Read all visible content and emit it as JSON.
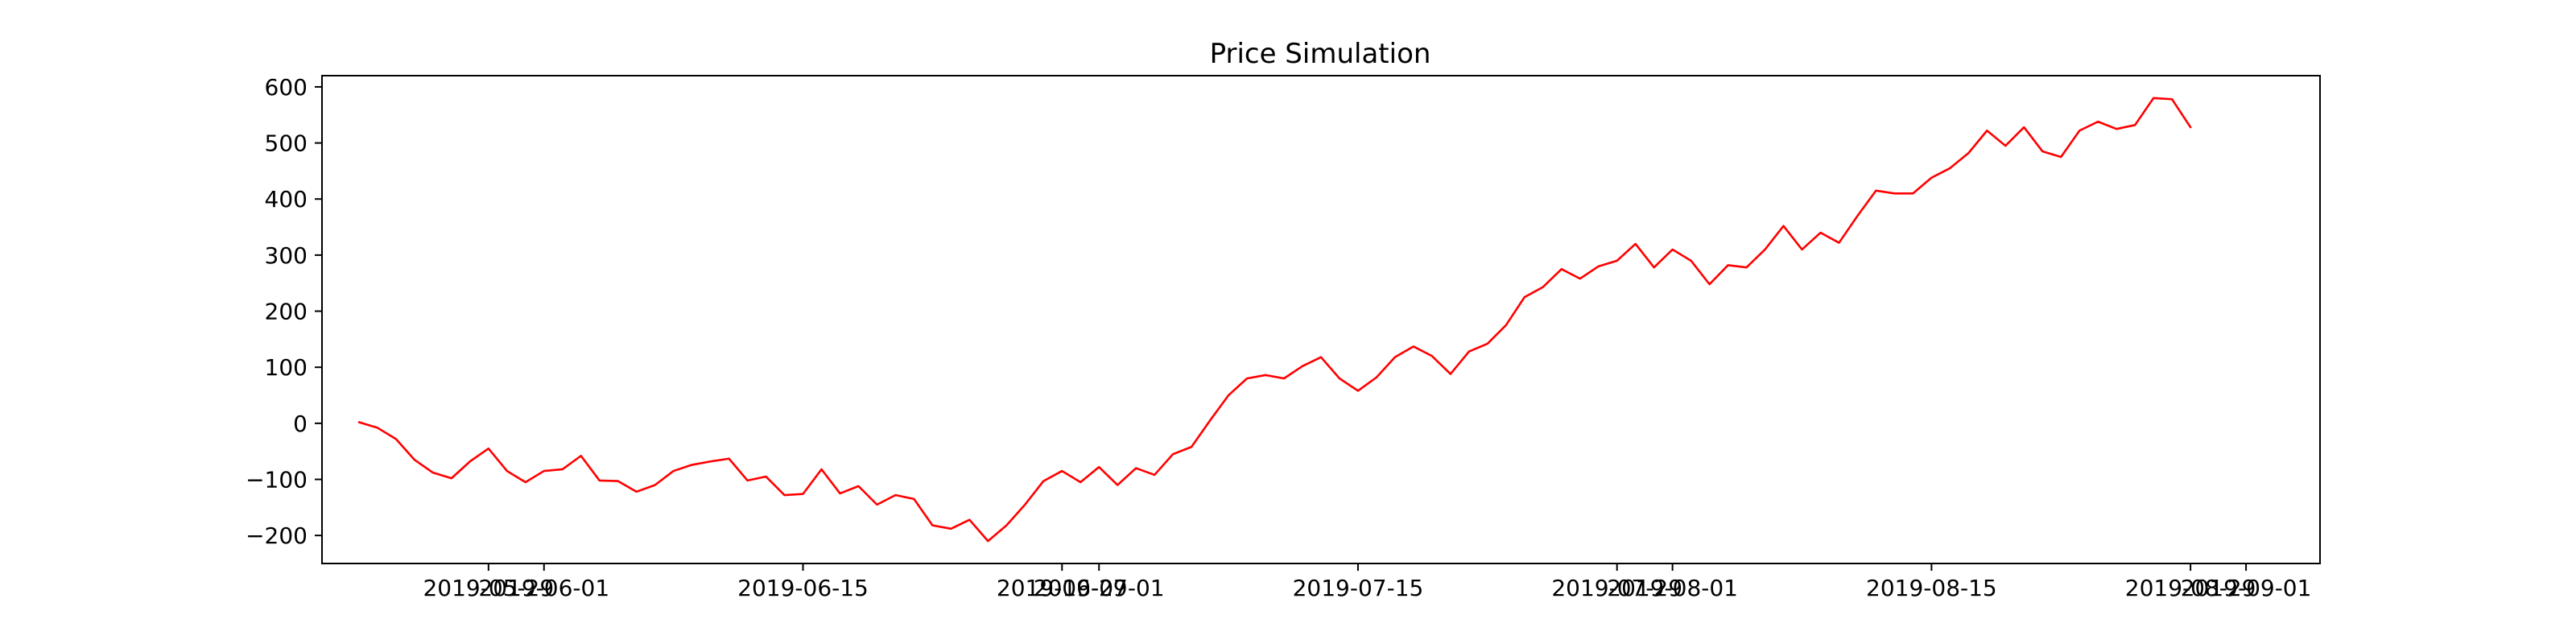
{
  "chart_data": {
    "type": "line",
    "title": "Price Simulation",
    "xlabel": "",
    "ylabel": "",
    "x_start": "2019-05-22",
    "x_end": "2019-08-29",
    "xlim": [
      "2019-05-20",
      "2019-09-05"
    ],
    "ylim": [
      -250,
      620
    ],
    "grid": false,
    "x_ticks": [
      {
        "date": "2019-05-29",
        "label": "2019-05-29"
      },
      {
        "date": "2019-06-01",
        "label": "2019-06-01"
      },
      {
        "date": "2019-06-15",
        "label": "2019-06-15"
      },
      {
        "date": "2019-06-29",
        "label": "2019-06-29"
      },
      {
        "date": "2019-07-01",
        "label": "2019-07-01"
      },
      {
        "date": "2019-07-15",
        "label": "2019-07-15"
      },
      {
        "date": "2019-07-29",
        "label": "2019-07-29"
      },
      {
        "date": "2019-08-01",
        "label": "2019-08-01"
      },
      {
        "date": "2019-08-15",
        "label": "2019-08-15"
      },
      {
        "date": "2019-08-29",
        "label": "2019-08-29"
      },
      {
        "date": "2019-09-01",
        "label": "2019-09-01"
      }
    ],
    "y_ticks": [
      {
        "value": -200,
        "label": "−200"
      },
      {
        "value": -100,
        "label": "−100"
      },
      {
        "value": 0,
        "label": "0"
      },
      {
        "value": 100,
        "label": "100"
      },
      {
        "value": 200,
        "label": "200"
      },
      {
        "value": 300,
        "label": "300"
      },
      {
        "value": 400,
        "label": "400"
      },
      {
        "value": 500,
        "label": "500"
      },
      {
        "value": 600,
        "label": "600"
      }
    ],
    "series": [
      {
        "color": "#ff0000",
        "values": [
          2,
          -8,
          -28,
          -65,
          -88,
          -98,
          -68,
          -45,
          -85,
          -105,
          -85,
          -82,
          -58,
          -102,
          -103,
          -122,
          -110,
          -85,
          -74,
          -68,
          -63,
          -102,
          -95,
          -128,
          -126,
          -82,
          -125,
          -112,
          -145,
          -128,
          -135,
          -182,
          -188,
          -172,
          -210,
          -182,
          -145,
          -103,
          -85,
          -105,
          -78,
          -110,
          -80,
          -92,
          -55,
          -42,
          5,
          50,
          80,
          86,
          80,
          102,
          118,
          80,
          58,
          82,
          118,
          137,
          120,
          88,
          128,
          142,
          175,
          225,
          243,
          275,
          258,
          280,
          290,
          320,
          278,
          310,
          290,
          248,
          282,
          278,
          310,
          352,
          310,
          340,
          322,
          370,
          415,
          410,
          410,
          438,
          455,
          482,
          522,
          495,
          528,
          485,
          475,
          522,
          538,
          525,
          532,
          580,
          578,
          528
        ]
      }
    ]
  }
}
